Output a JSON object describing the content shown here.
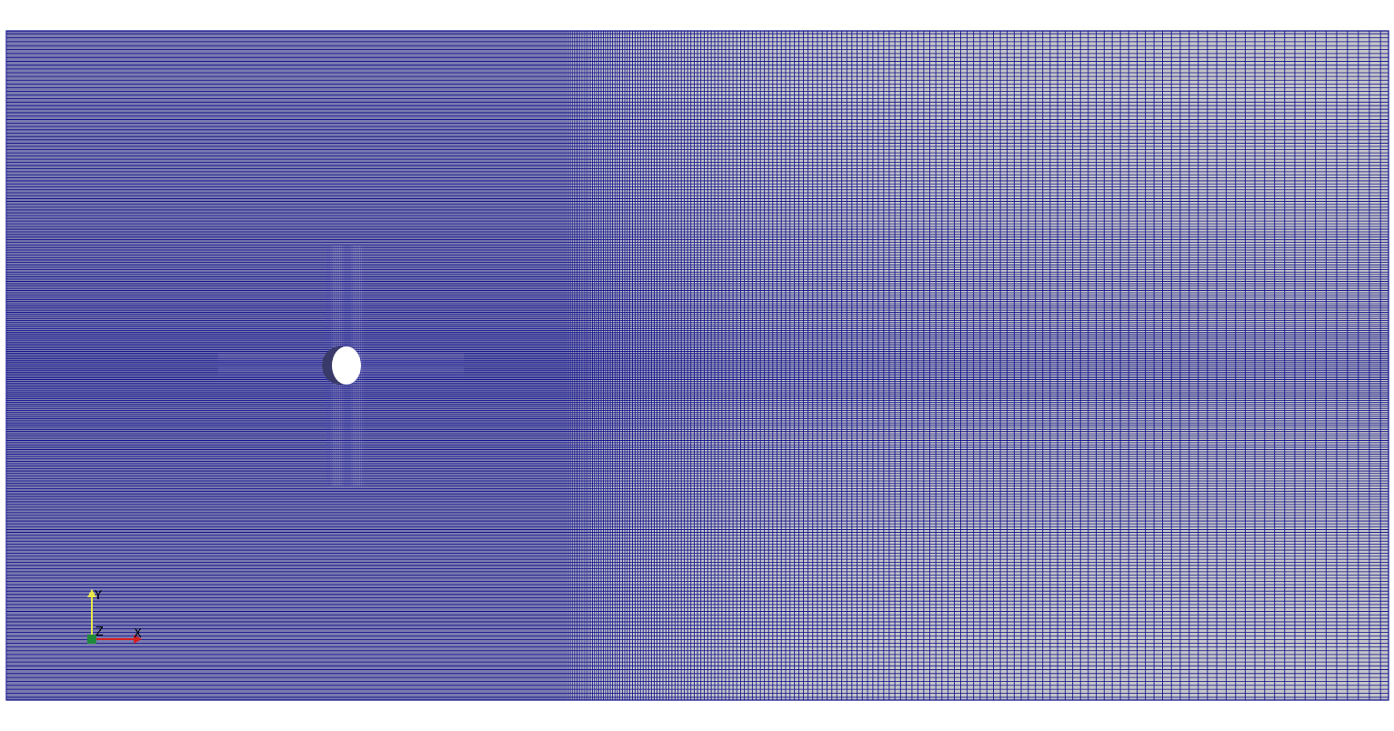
{
  "viewport": {
    "background": "#ffffff"
  },
  "mesh": {
    "line_color": "#0b0b8a",
    "cell_fill": "#c4c4c8",
    "obstacle_fill": "#ffffff",
    "obstacle_shape": "circle",
    "representation": "surface-with-edges"
  },
  "orientation_axes": {
    "x": {
      "label": "X",
      "color": "#d62020"
    },
    "y": {
      "label": "Y",
      "color": "#e8e84a"
    },
    "z": {
      "label": "Z",
      "color": "#1f8a3a"
    }
  }
}
